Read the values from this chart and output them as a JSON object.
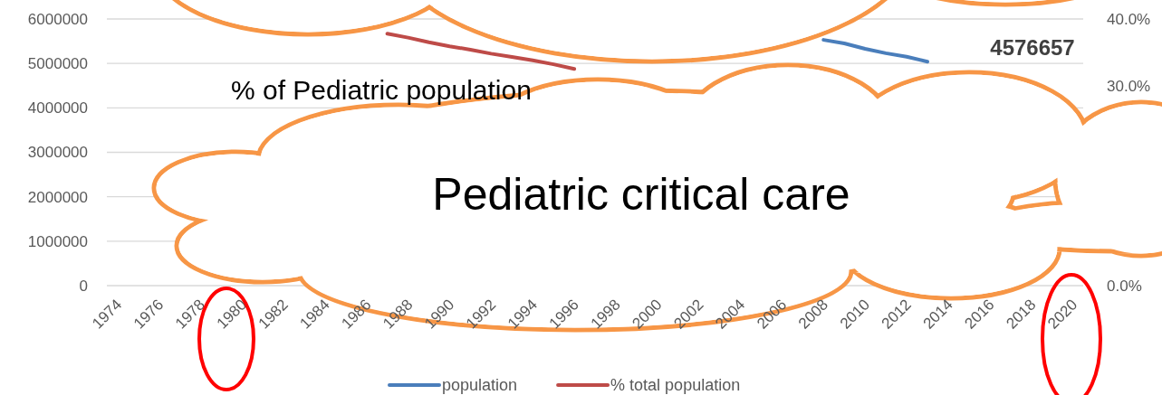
{
  "chart_data": {
    "type": "line",
    "categories": [
      "1974",
      null,
      "1976",
      null,
      "1978",
      null,
      "1980",
      null,
      "1982",
      null,
      "1984",
      null,
      "1986",
      null,
      "1988",
      null,
      "1990",
      null,
      "1992",
      null,
      "1994",
      null,
      "1996",
      null,
      "1998",
      null,
      "2000",
      null,
      "2002",
      null,
      "2004",
      null,
      "2006",
      null,
      "2008",
      null,
      "2010",
      null,
      "2012",
      null,
      "2014",
      null,
      "2016",
      null,
      "2018",
      null,
      "2020"
    ],
    "series": [
      {
        "name": "population",
        "color": "#4a7ebb",
        "values": [
          null,
          null,
          null,
          null,
          null,
          null,
          null,
          null,
          null,
          null,
          null,
          null,
          null,
          null,
          null,
          null,
          null,
          null,
          null,
          null,
          null,
          null,
          null,
          null,
          null,
          null,
          null,
          null,
          null,
          null,
          null,
          null,
          null,
          null,
          5530000,
          5450000,
          5330000,
          5230000,
          5150000,
          5040000,
          null,
          null,
          null,
          null,
          null,
          null,
          null
        ]
      },
      {
        "name": "% total population",
        "color": "#be4b48",
        "axis": "y2",
        "values": [
          null,
          null,
          null,
          null,
          null,
          null,
          null,
          null,
          null,
          null,
          null,
          null,
          null,
          37.8,
          37.2,
          36.5,
          35.9,
          35.4,
          34.8,
          34.3,
          33.8,
          33.2,
          32.5,
          null,
          null,
          null,
          null,
          null,
          null,
          null,
          null,
          null,
          null,
          null,
          null,
          null,
          null,
          null,
          null,
          null,
          null,
          null,
          null,
          null,
          null,
          null,
          null
        ]
      }
    ],
    "ylim": [
      0,
      6000000
    ],
    "yticks": [
      0,
      1000000,
      2000000,
      3000000,
      4000000,
      5000000,
      6000000
    ],
    "y2lim": [
      0,
      40
    ],
    "y2ticks": [
      {
        "value": 0,
        "label": "0.0%"
      },
      {
        "value": 30,
        "label": "30.0%"
      },
      {
        "value": 40,
        "label": "40.0%"
      }
    ],
    "grid": "y",
    "legend": "bottom",
    "line_style": "solid",
    "marker": "none",
    "annotations": [
      "4576657",
      "% of Pediatric population",
      "Pediatric critical care"
    ]
  }
}
